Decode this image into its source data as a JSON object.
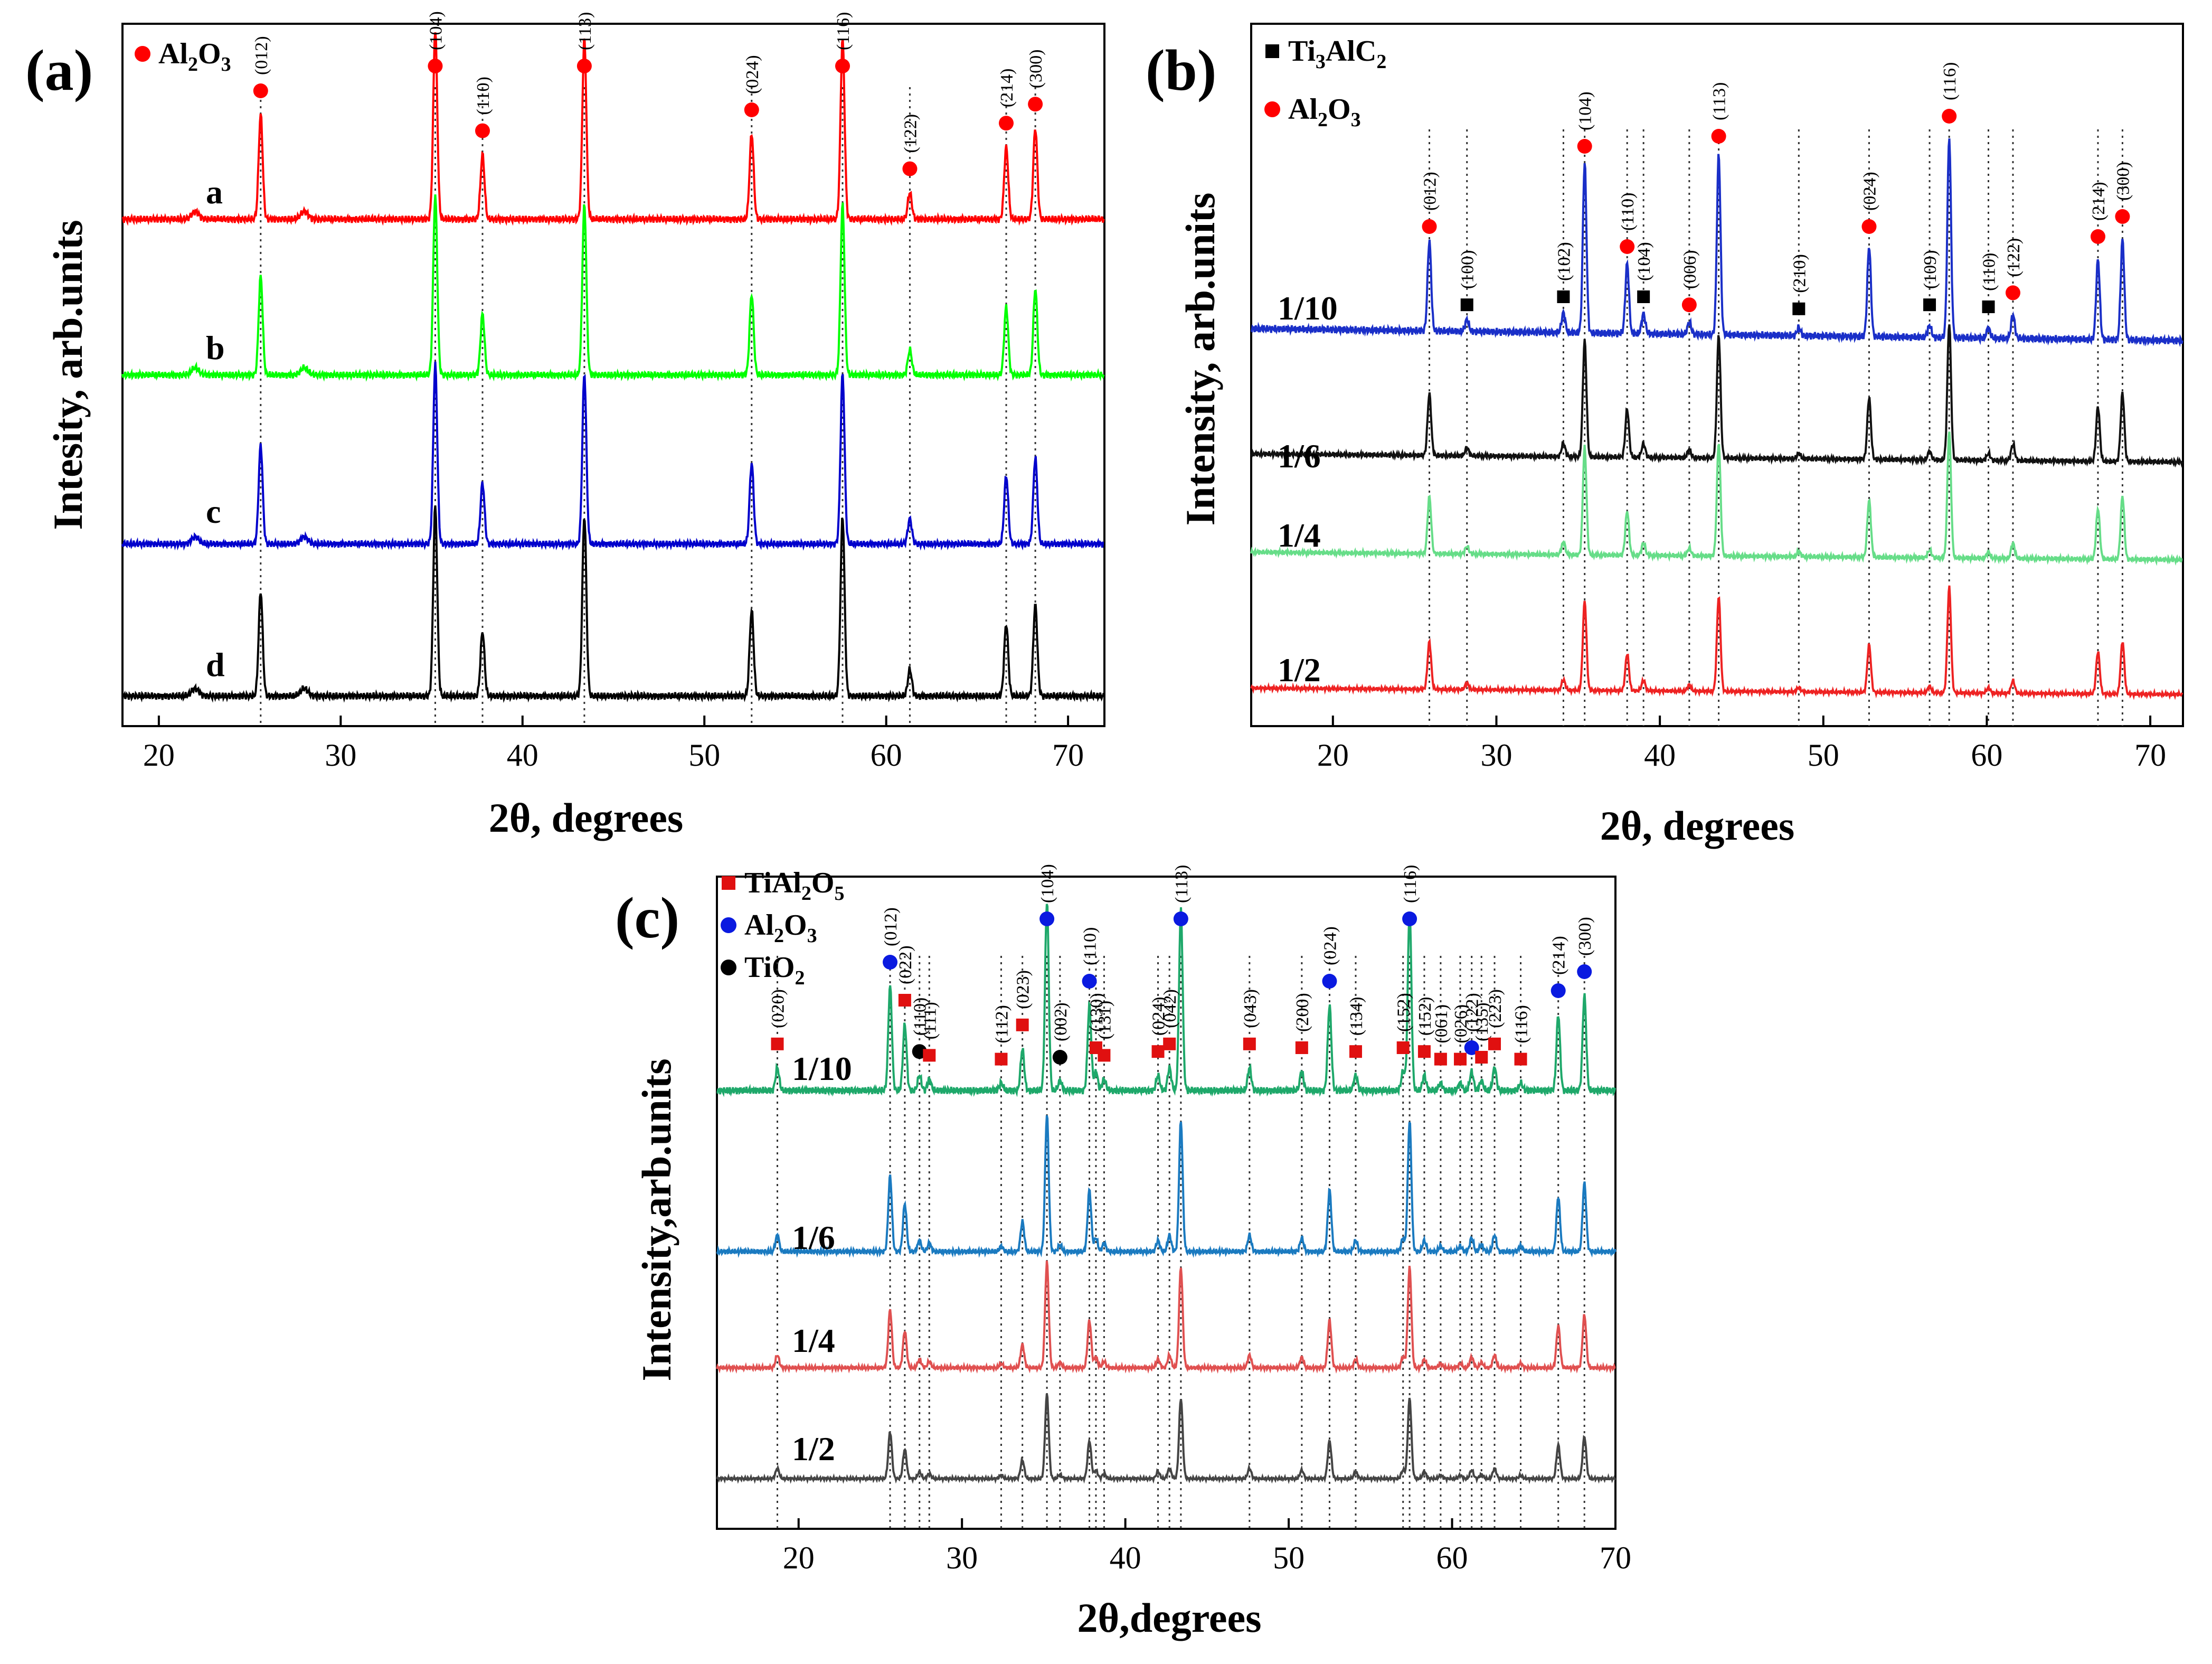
{
  "chart_data": [
    {
      "panel": "(a)",
      "type": "line",
      "title": "",
      "xlabel": "2θ, degrees",
      "ylabel": "Intesity, arb.units",
      "xlim": [
        18,
        72
      ],
      "xticks": [
        20,
        30,
        40,
        50,
        60,
        70
      ],
      "legend": [
        {
          "label": "Al2O3",
          "label_main": "Al",
          "label_sub1": "2",
          "label_mid": "O",
          "label_sub2": "3",
          "marker": "circle",
          "color": "#ff0000"
        }
      ],
      "series": [
        {
          "name": "a",
          "color": "#ff0000"
        },
        {
          "name": "b",
          "color": "#00ff00"
        },
        {
          "name": "c",
          "color": "#0000cc"
        },
        {
          "name": "d",
          "color": "#000000"
        }
      ],
      "peaks": [
        {
          "x": 25.6,
          "hkl": "(012)",
          "phase": 0,
          "rel": 0.55
        },
        {
          "x": 35.2,
          "hkl": "(104)",
          "phase": 0,
          "rel": 1.0
        },
        {
          "x": 37.8,
          "hkl": "(110)",
          "phase": 0,
          "rel": 0.34
        },
        {
          "x": 43.4,
          "hkl": "(113)",
          "phase": 0,
          "rel": 0.95
        },
        {
          "x": 52.6,
          "hkl": "(024)",
          "phase": 0,
          "rel": 0.45
        },
        {
          "x": 57.6,
          "hkl": "(116)",
          "phase": 0,
          "rel": 0.95
        },
        {
          "x": 61.3,
          "hkl": "(122)",
          "phase": 0,
          "rel": 0.14
        },
        {
          "x": 66.6,
          "hkl": "(214)",
          "phase": 0,
          "rel": 0.38
        },
        {
          "x": 68.2,
          "hkl": "(300)",
          "phase": 0,
          "rel": 0.48
        }
      ],
      "minor_peaks": [
        28.0,
        22.0
      ]
    },
    {
      "panel": "(b)",
      "type": "line",
      "title": "",
      "xlabel": "2θ, degrees",
      "ylabel": "Intensity, arb.units",
      "xlim": [
        15,
        72
      ],
      "xticks": [
        20,
        30,
        40,
        50,
        60,
        70
      ],
      "legend": [
        {
          "label": "Ti3AlC2",
          "label_main": "Ti",
          "label_sub1": "3",
          "label_mid": "AlC",
          "label_sub2": "2",
          "marker": "square",
          "color": "#000000"
        },
        {
          "label": "Al2O3",
          "label_main": "Al",
          "label_sub1": "2",
          "label_mid": "O",
          "label_sub2": "3",
          "marker": "circle",
          "color": "#ff0000"
        }
      ],
      "series": [
        {
          "name": "1/10",
          "color": "#1a2fc8"
        },
        {
          "name": "1/6",
          "color": "#111111"
        },
        {
          "name": "1/4",
          "color": "#66dd88"
        },
        {
          "name": "1/2",
          "color": "#ee2222"
        }
      ],
      "peaks": [
        {
          "x": 25.9,
          "hkl": "(012)",
          "phase": 1,
          "rel": 0.45
        },
        {
          "x": 28.2,
          "hkl": "(100)",
          "phase": 0,
          "rel": 0.06
        },
        {
          "x": 34.1,
          "hkl": "(102)",
          "phase": 0,
          "rel": 0.1
        },
        {
          "x": 35.4,
          "hkl": "(104)",
          "phase": 1,
          "rel": 0.85
        },
        {
          "x": 38.0,
          "hkl": "(110)",
          "phase": 1,
          "rel": 0.35
        },
        {
          "x": 39.0,
          "hkl": "(104)",
          "phase": 0,
          "rel": 0.1
        },
        {
          "x": 41.8,
          "hkl": "(006)",
          "phase": 1,
          "rel": 0.06
        },
        {
          "x": 43.6,
          "hkl": "(113)",
          "phase": 1,
          "rel": 0.9
        },
        {
          "x": 48.5,
          "hkl": "(210)",
          "phase": 0,
          "rel": 0.04
        },
        {
          "x": 52.8,
          "hkl": "(024)",
          "phase": 1,
          "rel": 0.45
        },
        {
          "x": 56.5,
          "hkl": "(109)",
          "phase": 0,
          "rel": 0.06
        },
        {
          "x": 57.7,
          "hkl": "(116)",
          "phase": 1,
          "rel": 1.0
        },
        {
          "x": 60.1,
          "hkl": "(110)",
          "phase": 0,
          "rel": 0.05
        },
        {
          "x": 61.6,
          "hkl": "(122)",
          "phase": 1,
          "rel": 0.12
        },
        {
          "x": 66.8,
          "hkl": "(214)",
          "phase": 1,
          "rel": 0.4
        },
        {
          "x": 68.3,
          "hkl": "(300)",
          "phase": 1,
          "rel": 0.5
        }
      ]
    },
    {
      "panel": "(c)",
      "type": "line",
      "title": "",
      "xlabel": "2θ,degrees",
      "ylabel": "Intensity,arb.units",
      "xlim": [
        15,
        70
      ],
      "xticks": [
        20,
        30,
        40,
        50,
        60,
        70
      ],
      "legend": [
        {
          "label": "TiAl2O5",
          "label_main": "TiAl",
          "label_sub1": "2",
          "label_mid": "O",
          "label_sub2": "5",
          "marker": "square",
          "color": "#e01010"
        },
        {
          "label": "Al2O3",
          "label_main": "Al",
          "label_sub1": "2",
          "label_mid": "O",
          "label_sub2": "3",
          "marker": "circle",
          "color": "#0a1ae0"
        },
        {
          "label": "TiO2",
          "label_main": "TiO",
          "label_sub1": "2",
          "label_mid": "",
          "label_sub2": "",
          "marker": "circle",
          "color": "#000000"
        }
      ],
      "series": [
        {
          "name": "1/10",
          "color": "#1ea86a"
        },
        {
          "name": "1/6",
          "color": "#1a7ac0"
        },
        {
          "name": "1/4",
          "color": "#e05050"
        },
        {
          "name": "1/2",
          "color": "#444444"
        }
      ],
      "peaks": [
        {
          "x": 18.7,
          "hkl": "(020)",
          "phase": 0,
          "rel": 0.12
        },
        {
          "x": 25.6,
          "hkl": "(012)",
          "phase": 1,
          "rel": 0.55
        },
        {
          "x": 26.5,
          "hkl": "(022)",
          "phase": 0,
          "rel": 0.35
        },
        {
          "x": 27.4,
          "hkl": "(110)",
          "phase": 2,
          "rel": 0.08
        },
        {
          "x": 28.0,
          "hkl": "(111)",
          "phase": 0,
          "rel": 0.06
        },
        {
          "x": 32.4,
          "hkl": "(112)",
          "phase": 0,
          "rel": 0.04
        },
        {
          "x": 33.7,
          "hkl": "(023)",
          "phase": 0,
          "rel": 0.22
        },
        {
          "x": 35.2,
          "hkl": "(104)",
          "phase": 1,
          "rel": 1.0
        },
        {
          "x": 36.0,
          "hkl": "(002)",
          "phase": 2,
          "rel": 0.05
        },
        {
          "x": 37.8,
          "hkl": "(110)",
          "phase": 1,
          "rel": 0.45
        },
        {
          "x": 38.2,
          "hkl": "(130)",
          "phase": 0,
          "rel": 0.1
        },
        {
          "x": 38.7,
          "hkl": "(131)",
          "phase": 0,
          "rel": 0.06
        },
        {
          "x": 42.0,
          "hkl": "(024)",
          "phase": 0,
          "rel": 0.08
        },
        {
          "x": 42.7,
          "hkl": "(042)",
          "phase": 0,
          "rel": 0.12
        },
        {
          "x": 43.4,
          "hkl": "(113)",
          "phase": 1,
          "rel": 0.95
        },
        {
          "x": 47.6,
          "hkl": "(043)",
          "phase": 0,
          "rel": 0.12
        },
        {
          "x": 50.8,
          "hkl": "(200)",
          "phase": 0,
          "rel": 0.1
        },
        {
          "x": 52.5,
          "hkl": "(024)",
          "phase": 1,
          "rel": 0.45
        },
        {
          "x": 54.1,
          "hkl": "(134)",
          "phase": 0,
          "rel": 0.08
        },
        {
          "x": 57.0,
          "hkl": "(152)",
          "phase": 0,
          "rel": 0.1
        },
        {
          "x": 57.4,
          "hkl": "(116)",
          "phase": 1,
          "rel": 0.95
        },
        {
          "x": 58.3,
          "hkl": "(152)",
          "phase": 0,
          "rel": 0.08
        },
        {
          "x": 59.3,
          "hkl": "(061)",
          "phase": 0,
          "rel": 0.04
        },
        {
          "x": 60.5,
          "hkl": "(026)",
          "phase": 0,
          "rel": 0.04
        },
        {
          "x": 61.2,
          "hkl": "(122)",
          "phase": 1,
          "rel": 0.1
        },
        {
          "x": 61.8,
          "hkl": "(135)",
          "phase": 0,
          "rel": 0.05
        },
        {
          "x": 62.6,
          "hkl": "(223)",
          "phase": 0,
          "rel": 0.12
        },
        {
          "x": 64.2,
          "hkl": "(116)",
          "phase": 0,
          "rel": 0.04
        },
        {
          "x": 66.5,
          "hkl": "(214)",
          "phase": 1,
          "rel": 0.4
        },
        {
          "x": 68.1,
          "hkl": "(300)",
          "phase": 1,
          "rel": 0.5
        }
      ]
    }
  ]
}
